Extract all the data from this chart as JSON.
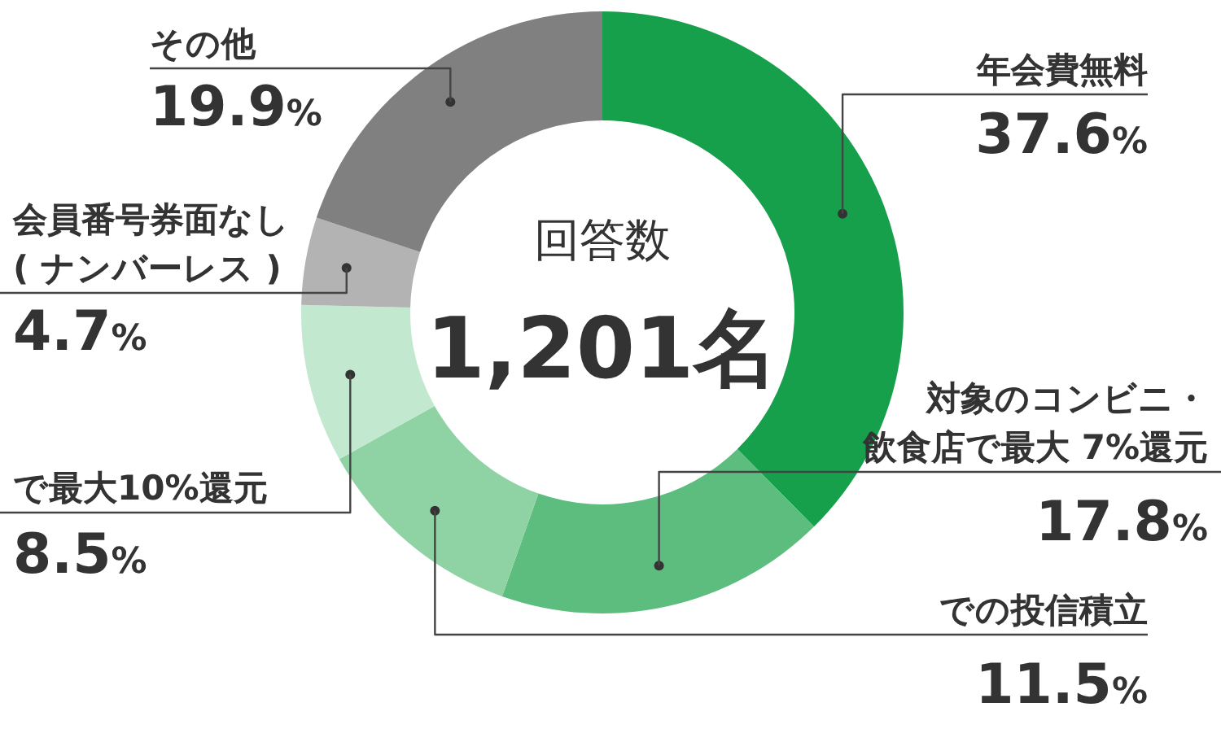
{
  "chart_data": {
    "type": "donut",
    "categories": [
      "年会費無料",
      "対象のコンビニ・飲食店で最大 7%還元",
      "での投信積立",
      "で最大10%還元",
      "会員番号券面なし( ナンバーレス )",
      "その他"
    ],
    "values": [
      37.6,
      17.8,
      11.5,
      8.5,
      4.7,
      19.9
    ],
    "colors": [
      "#17a04c",
      "#5cbd7e",
      "#8fd2a4",
      "#c2e9cf",
      "#b3b3b3",
      "#808080"
    ],
    "value_labels": [
      "37.6%",
      "17.8%",
      "11.5%",
      "8.5%",
      "4.7%",
      "19.9%"
    ],
    "annotations": [
      "回答数",
      "1,201名"
    ],
    "legend": false
  }
}
